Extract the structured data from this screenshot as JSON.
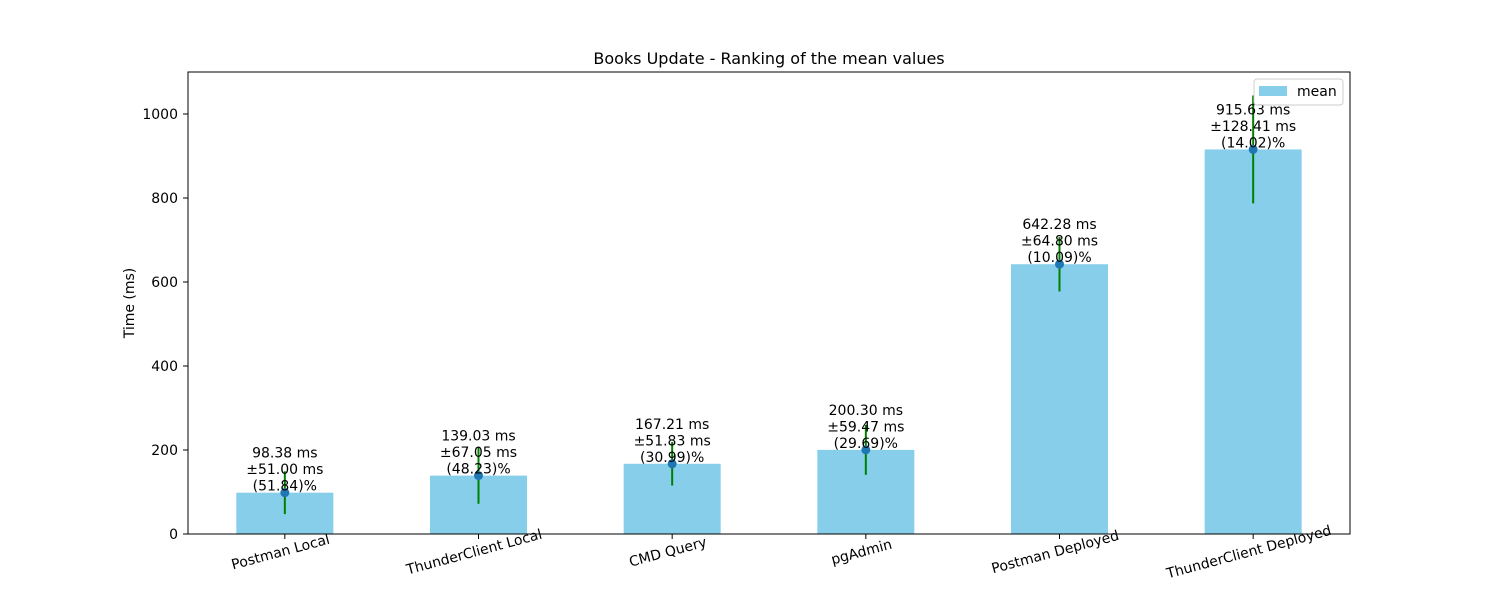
{
  "chart_data": {
    "type": "bar",
    "title": "Books Update - Ranking of the mean values",
    "xlabel": "",
    "ylabel": "Time (ms)",
    "ylim": [
      0,
      1100
    ],
    "yticks": [
      0,
      200,
      400,
      600,
      800,
      1000
    ],
    "grid": false,
    "legend_position": "top-right",
    "categories": [
      "Postman Local",
      "ThunderClient Local",
      "CMD Query",
      "pgAdmin",
      "Postman Deployed",
      "ThunderClient Deployed"
    ],
    "series": [
      {
        "name": "mean",
        "values": [
          98.38,
          139.03,
          167.21,
          200.3,
          642.28,
          915.63
        ],
        "errors": [
          51.0,
          67.05,
          51.83,
          59.47,
          64.8,
          128.41
        ],
        "color": "#87ceeb"
      }
    ],
    "annotations": [
      [
        "98.38 ms",
        "±51.00 ms",
        "(51.84)%"
      ],
      [
        "139.03 ms",
        "±67.05 ms",
        "(48.23)%"
      ],
      [
        "167.21 ms",
        "±51.83 ms",
        "(30.99)%"
      ],
      [
        "200.30 ms",
        "±59.47 ms",
        "(29.69)%"
      ],
      [
        "642.28 ms",
        "±64.80 ms",
        "(10.09)%"
      ],
      [
        "915.63 ms",
        "±128.41 ms",
        "(14.02)%"
      ]
    ],
    "errorbar_color": "#008000",
    "marker_color": "#1f77b4"
  }
}
